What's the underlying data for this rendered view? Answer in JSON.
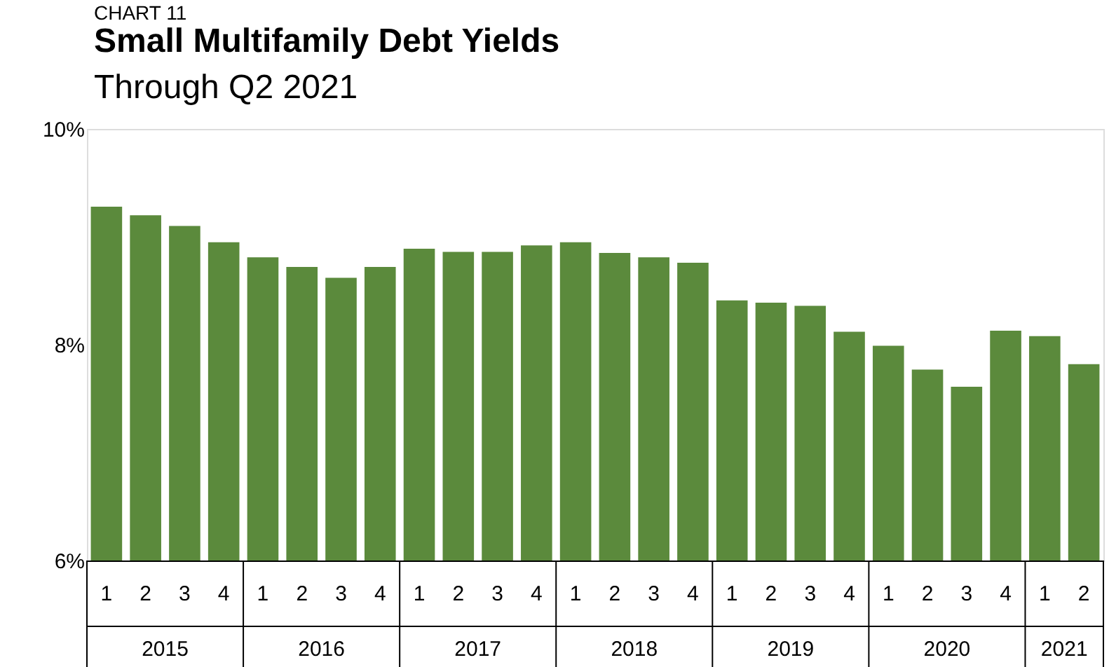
{
  "chart_data": {
    "type": "bar",
    "title": "Small Multifamily Debt Yields",
    "subtitle": "Through Q2 2021",
    "annotations": [
      "CHART 11",
      "2015",
      "2016",
      "2017",
      "2018",
      "2019",
      "2020",
      "2021"
    ],
    "categories": [
      "1",
      "2",
      "3",
      "4",
      "1",
      "2",
      "3",
      "4",
      "1",
      "2",
      "3",
      "4",
      "1",
      "2",
      "3",
      "4",
      "1",
      "2",
      "3",
      "4",
      "1",
      "2",
      "3",
      "4",
      "1",
      "2"
    ],
    "values": [
      9.28,
      9.2,
      9.1,
      8.95,
      8.81,
      8.72,
      8.62,
      8.72,
      8.89,
      8.86,
      8.86,
      8.92,
      8.95,
      8.85,
      8.81,
      8.76,
      8.41,
      8.39,
      8.36,
      8.12,
      7.99,
      7.77,
      7.61,
      8.13,
      8.08,
      7.82
    ],
    "color": "#5b8a3c",
    "ylim": [
      6,
      10
    ],
    "yticks": [
      {
        "value": 6,
        "label": "6%"
      },
      {
        "value": 8,
        "label": "8%"
      },
      {
        "value": 10,
        "label": "10%"
      }
    ],
    "grid": false
  }
}
